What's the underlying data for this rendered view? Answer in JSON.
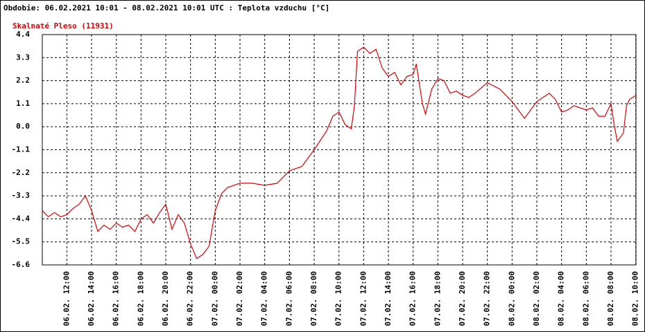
{
  "chart_data": {
    "type": "line",
    "title": "Obdobie: 06.02.2021 10:01 - 08.02.2021 10:01 UTC : Teplota vzduchu [°C]",
    "x": [
      "06.02. 10:01",
      "06.02. 10:30",
      "06.02. 11:00",
      "06.02. 11:30",
      "06.02. 12:00",
      "06.02. 12:30",
      "06.02. 13:00",
      "06.02. 13:30",
      "06.02. 14:00",
      "06.02. 14:30",
      "06.02. 15:00",
      "06.02. 15:30",
      "06.02. 16:00",
      "06.02. 16:30",
      "06.02. 17:00",
      "06.02. 17:30",
      "06.02. 18:00",
      "06.02. 18:30",
      "06.02. 19:00",
      "06.02. 19:30",
      "06.02. 20:00",
      "06.02. 20:30",
      "06.02. 21:00",
      "06.02. 21:30",
      "06.02. 22:00",
      "06.02. 22:30",
      "06.02. 23:00",
      "06.02. 23:30",
      "07.02. 00:00",
      "07.02. 00:30",
      "07.02. 01:00",
      "07.02. 02:00",
      "07.02. 03:00",
      "07.02. 04:00",
      "07.02. 05:00",
      "07.02. 05:30",
      "07.02. 06:00",
      "07.02. 07:00",
      "07.02. 08:00",
      "07.02. 09:00",
      "07.02. 09:30",
      "07.02. 10:00",
      "07.02. 10:30",
      "07.02. 11:00",
      "07.02. 11:15",
      "07.02. 11:30",
      "07.02. 12:00",
      "07.02. 12:30",
      "07.02. 13:00",
      "07.02. 13:30",
      "07.02. 14:00",
      "07.02. 14:30",
      "07.02. 15:00",
      "07.02. 15:30",
      "07.02. 16:00",
      "07.02. 16:15",
      "07.02. 16:45",
      "07.02. 17:00",
      "07.02. 17:30",
      "07.02. 18:00",
      "07.02. 18:30",
      "07.02. 19:00",
      "07.02. 19:30",
      "07.02. 20:00",
      "07.02. 20:30",
      "07.02. 21:00",
      "07.02. 22:00",
      "07.02. 23:00",
      "08.02. 00:00",
      "08.02. 00:30",
      "08.02. 01:00",
      "08.02. 01:30",
      "08.02. 02:00",
      "08.02. 03:00",
      "08.02. 03:30",
      "08.02. 04:00",
      "08.02. 04:30",
      "08.02. 05:00",
      "08.02. 06:00",
      "08.02. 06:30",
      "08.02. 07:00",
      "08.02. 07:30",
      "08.02. 08:00",
      "08.02. 08:15",
      "08.02. 08:30",
      "08.02. 09:00",
      "08.02. 09:15",
      "08.02. 09:30",
      "08.02. 10:01"
    ],
    "series": [
      {
        "name": "Skalnaté Pleso (11931)",
        "color": "#dd0000",
        "values": [
          -4.0,
          -4.3,
          -4.1,
          -4.3,
          -4.2,
          -3.9,
          -3.7,
          -3.3,
          -4.0,
          -5.0,
          -4.7,
          -4.9,
          -4.6,
          -4.8,
          -4.7,
          -5.0,
          -4.4,
          -4.2,
          -4.6,
          -4.1,
          -3.7,
          -4.9,
          -4.2,
          -4.6,
          -5.6,
          -6.3,
          -6.1,
          -5.7,
          -4.0,
          -3.2,
          -2.9,
          -2.7,
          -2.7,
          -2.8,
          -2.7,
          -2.4,
          -2.1,
          -1.9,
          -1.1,
          -0.2,
          0.5,
          0.7,
          0.1,
          -0.1,
          1.0,
          3.6,
          3.8,
          3.5,
          3.7,
          2.8,
          2.4,
          2.6,
          2.0,
          2.4,
          2.5,
          3.0,
          1.1,
          0.6,
          1.8,
          2.3,
          2.2,
          1.6,
          1.7,
          1.5,
          1.4,
          1.6,
          2.1,
          1.8,
          1.2,
          0.8,
          0.4,
          0.8,
          1.2,
          1.6,
          1.3,
          0.7,
          0.8,
          1.0,
          0.8,
          0.9,
          0.5,
          0.5,
          1.1,
          0.1,
          -0.7,
          -0.3,
          1.0,
          1.3,
          1.5
        ]
      }
    ],
    "xlim": [
      "06.02. 10:01",
      "08.02. 10:01"
    ],
    "xticks": [
      "06.02. 12:00",
      "06.02. 14:00",
      "06.02. 16:00",
      "06.02. 18:00",
      "06.02. 20:00",
      "06.02. 22:00",
      "07.02. 00:00",
      "07.02. 02:00",
      "07.02. 04:00",
      "07.02. 06:00",
      "07.02. 08:00",
      "07.02. 10:00",
      "07.02. 12:00",
      "07.02. 14:00",
      "07.02. 16:00",
      "07.02. 18:00",
      "07.02. 20:00",
      "07.02. 22:00",
      "08.02. 00:00",
      "08.02. 02:00",
      "08.02. 04:00",
      "08.02. 06:00",
      "08.02. 08:00",
      "08.02. 10:00"
    ],
    "ylim": [
      -6.6,
      4.4
    ],
    "yticks": [
      -6.6,
      -5.5,
      -4.4,
      -3.3,
      -2.2,
      -1.1,
      {
        "value": 0,
        "label": "0.0"
      },
      1.1,
      2.2,
      3.3,
      4.4
    ],
    "grid": true
  }
}
